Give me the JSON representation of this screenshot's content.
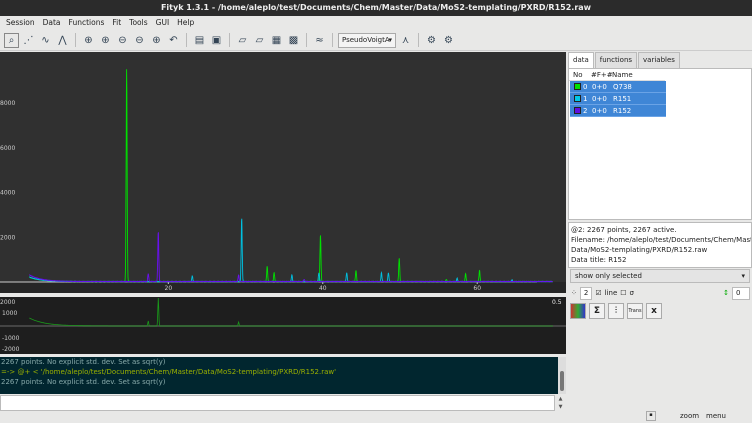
{
  "window": {
    "title": "Fityk 1.3.1 - /home/aleplo/test/Documents/Chem/Master/Data/MoS2-templating/PXRD/R152.raw"
  },
  "menu": [
    "Session",
    "Data",
    "Functions",
    "Fit",
    "Tools",
    "GUI",
    "Help"
  ],
  "toolbar": {
    "function_type": "PseudoVoigtA"
  },
  "tabs": [
    "data",
    "functions",
    "variables"
  ],
  "data_table": {
    "headers": [
      "No",
      "#F+#",
      "Name"
    ],
    "rows": [
      {
        "no": "0",
        "f": "0+0",
        "name": "Q738",
        "color": "#00e000"
      },
      {
        "no": "1",
        "f": "0+0",
        "name": "R151",
        "color": "#00c8e8"
      },
      {
        "no": "2",
        "f": "0+0",
        "name": "R152",
        "color": "#6010e0"
      }
    ]
  },
  "info": [
    "@2: 2267 points, 2267 active.",
    "Filename: /home/aleplo/test/Documents/Chem/Master/",
    "Data/MoS2-templating/PXRD/R152.raw",
    "Data title: R152"
  ],
  "filter": "show only selected",
  "controls": {
    "point_size": "2",
    "line_label": "line",
    "sigma_label": "σ",
    "shift": "0",
    "line_checked": true,
    "sigma_checked": false
  },
  "buttons": [
    "Σ",
    "Trans",
    "x"
  ],
  "console": [
    "2267 points. No explicit std. dev. Set as sqrt(y)",
    "=-> @+ < '/home/aleplo/test/Documents/Chem/Master/Data/MoS2-templating/PXRD/R152.raw'",
    "2267 points. No explicit std. dev. Set as sqrt(y)"
  ],
  "status": {
    "hint": "zoom",
    "menu": "menu"
  },
  "resid_labels": {
    "scale": "0.5",
    "ticks": [
      "2000",
      "1000",
      "-1000",
      "-2000"
    ]
  },
  "chart_data": {
    "type": "line",
    "xlim": [
      -1.8,
      71.5
    ],
    "ylim": [
      0,
      10200
    ],
    "x_ticks": [
      20,
      40,
      60
    ],
    "y_ticks": [
      2000,
      4000,
      6000,
      8000
    ],
    "series": [
      {
        "name": "Q738",
        "color": "#00e000",
        "peaks": [
          [
            14.6,
            9500
          ],
          [
            32.8,
            680
          ],
          [
            33.7,
            400
          ],
          [
            39.7,
            2100
          ],
          [
            44.3,
            500
          ],
          [
            49.9,
            1060
          ],
          [
            56,
            100
          ],
          [
            58.5,
            350
          ],
          [
            60.3,
            500
          ]
        ]
      },
      {
        "name": "R151",
        "color": "#00c0e0",
        "peaks": [
          [
            23.1,
            250
          ],
          [
            29.5,
            2850
          ],
          [
            36,
            300
          ],
          [
            39.5,
            400
          ],
          [
            43.1,
            400
          ],
          [
            47.6,
            400
          ],
          [
            48.5,
            400
          ],
          [
            57.4,
            150
          ],
          [
            64.5,
            80
          ]
        ]
      },
      {
        "name": "R152",
        "color": "#6a10f0",
        "peaks": [
          [
            17.4,
            350
          ],
          [
            18.7,
            2230
          ],
          [
            29.1,
            300
          ],
          [
            37.6,
            100
          ]
        ]
      }
    ]
  }
}
